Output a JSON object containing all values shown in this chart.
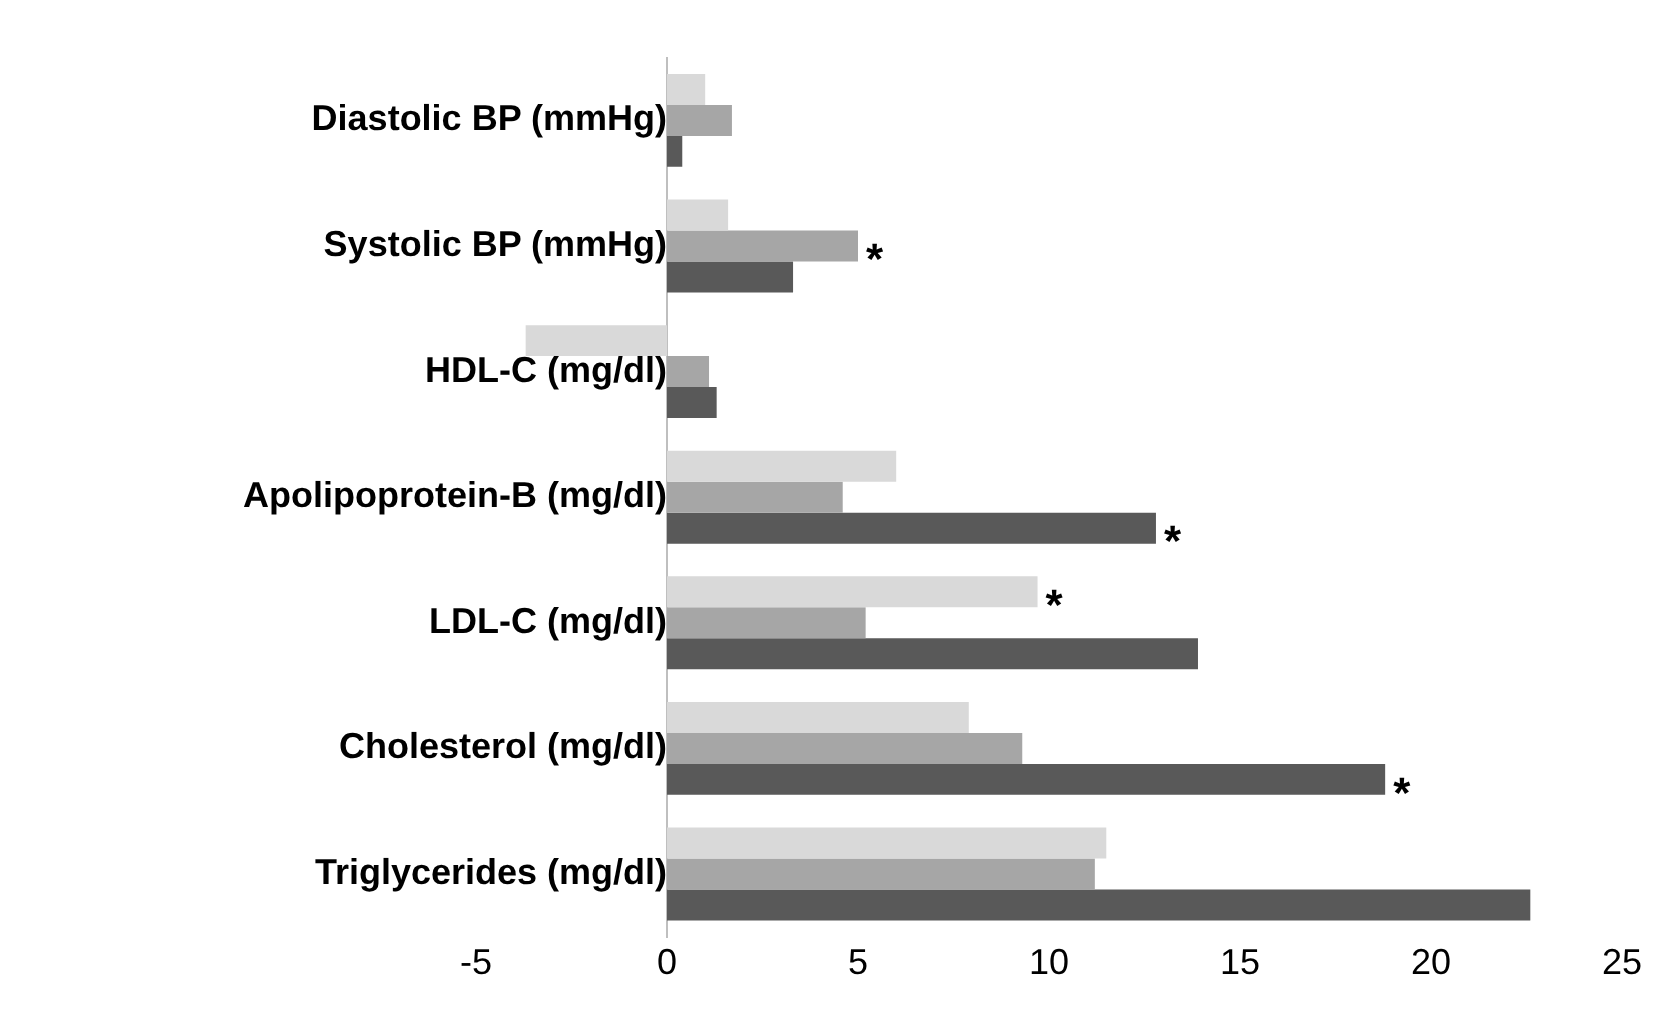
{
  "chart_data": {
    "type": "bar",
    "orientation": "horizontal",
    "categories": [
      "Diastolic BP (mmHg)",
      "Systolic BP (mmHg)",
      "HDL-C (mg/dl)",
      "Apolipoprotein-B (mg/dl)",
      "LDL-C (mg/dl)",
      "Cholesterol (mg/dl)",
      "Triglycerides (mg/dl)"
    ],
    "series": [
      {
        "color": "#d9d9d9",
        "values": [
          1.0,
          1.6,
          -3.7,
          6.0,
          9.7,
          7.9,
          11.5
        ]
      },
      {
        "color": "#a6a6a6",
        "values": [
          1.7,
          5.0,
          1.1,
          4.6,
          5.2,
          9.3,
          11.2
        ]
      },
      {
        "color": "#595959",
        "values": [
          0.4,
          3.3,
          1.3,
          12.8,
          13.9,
          18.8,
          22.6
        ]
      }
    ],
    "xlim": [
      -5,
      25
    ],
    "xticks": [
      -5,
      0,
      5,
      10,
      15,
      20,
      25
    ],
    "grid": false,
    "legend": false,
    "annotations": [
      {
        "text": "*",
        "x": 5.0
      },
      {
        "text": "*",
        "x": 12.8
      },
      {
        "text": "*",
        "x": 9.7
      },
      {
        "text": "*",
        "x": 18.8
      }
    ]
  }
}
